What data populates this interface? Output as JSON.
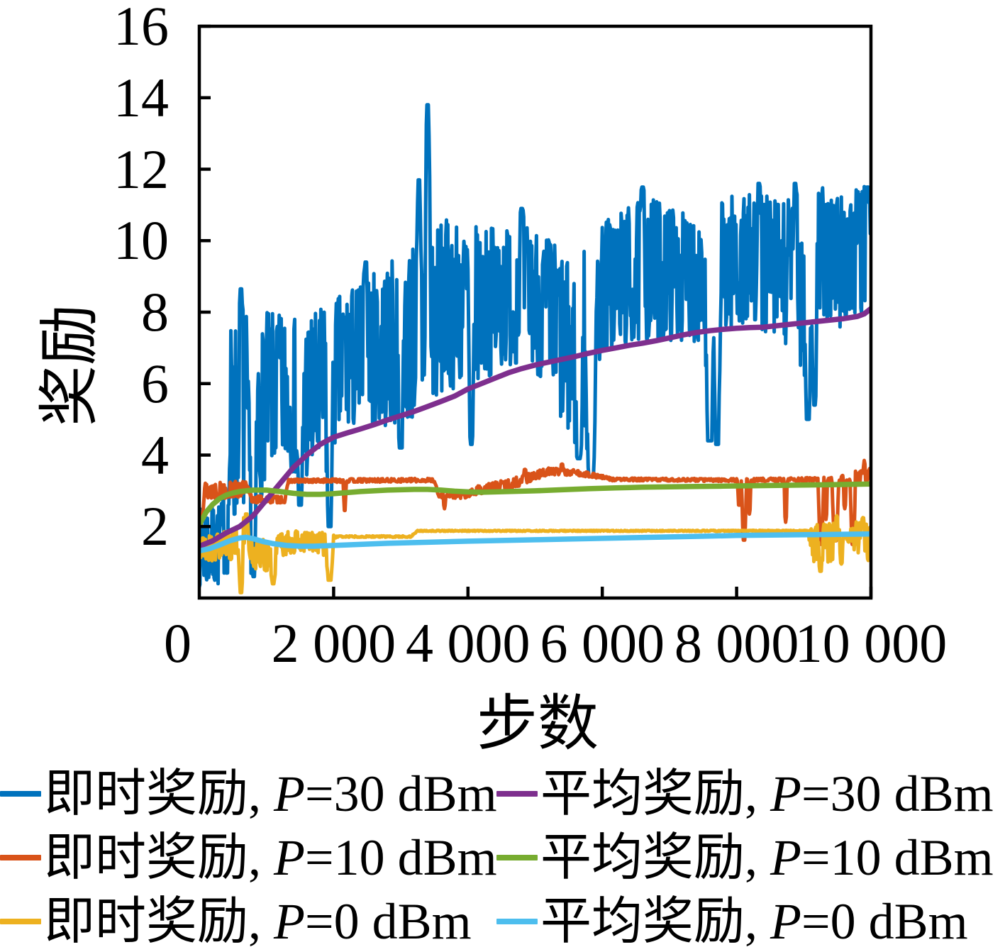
{
  "chart_data": {
    "type": "line",
    "title": "",
    "xlabel": "步数",
    "ylabel": "奖励",
    "xlim": [
      0,
      10000
    ],
    "ylim": [
      0,
      16
    ],
    "grid": false,
    "legend_position": "below-two-columns",
    "origin_tick_label": "0",
    "x_ticks": [
      {
        "value": 2000,
        "label": "2 000"
      },
      {
        "value": 4000,
        "label": "4 000"
      },
      {
        "value": 6000,
        "label": "6 000"
      },
      {
        "value": 8000,
        "label": "8 000"
      },
      {
        "value": 10000,
        "label": "10 000"
      }
    ],
    "y_ticks": [
      {
        "value": 2,
        "label": "2"
      },
      {
        "value": 4,
        "label": "4"
      },
      {
        "value": 6,
        "label": "6"
      },
      {
        "value": 8,
        "label": "8"
      },
      {
        "value": 10,
        "label": "10"
      },
      {
        "value": 12,
        "label": "12"
      },
      {
        "value": 14,
        "label": "14"
      },
      {
        "value": 16,
        "label": "16"
      }
    ],
    "series": [
      {
        "name": "即时奖励, P=30 dBm",
        "legend_cn": "即时奖励, ",
        "legend_math": "P",
        "legend_rest": "=30 dBm",
        "color": "#0072BD",
        "style": "noisy",
        "line_width": 5,
        "trend": [
          [
            0,
            1.4,
            1.1
          ],
          [
            350,
            1.5,
            1.2
          ],
          [
            430,
            4.6,
            3.0
          ],
          [
            700,
            5.2,
            2.8
          ],
          [
            770,
            2.2,
            1.5
          ],
          [
            870,
            4.6,
            2.4
          ],
          [
            1000,
            5.8,
            2.2
          ],
          [
            1300,
            5.8,
            2.1
          ],
          [
            1500,
            5.5,
            2.3
          ],
          [
            1800,
            5.7,
            2.4
          ],
          [
            2100,
            6.5,
            2.0
          ],
          [
            2500,
            6.9,
            2.1
          ],
          [
            2900,
            7.1,
            2.4
          ],
          [
            3300,
            7.6,
            2.6
          ],
          [
            3700,
            8.2,
            2.4
          ],
          [
            4100,
            8.2,
            2.2
          ],
          [
            4500,
            8.4,
            2.0
          ],
          [
            4900,
            8.6,
            1.9
          ],
          [
            5250,
            7.8,
            2.3
          ],
          [
            5550,
            6.6,
            2.6
          ],
          [
            5800,
            7.6,
            2.4
          ],
          [
            6000,
            8.7,
            1.9
          ],
          [
            6400,
            9.0,
            2.0
          ],
          [
            6800,
            9.2,
            2.0
          ],
          [
            7200,
            9.0,
            1.8
          ],
          [
            7500,
            9.0,
            1.9
          ],
          [
            7900,
            9.4,
            1.9
          ],
          [
            8300,
            9.4,
            1.9
          ],
          [
            8700,
            9.1,
            2.1
          ],
          [
            9000,
            8.8,
            2.4
          ],
          [
            9300,
            9.6,
            1.9
          ],
          [
            9600,
            9.4,
            2.0
          ],
          [
            10000,
            9.9,
            1.7
          ]
        ],
        "events": [
          [
            410,
            0.7,
            35
          ],
          [
            620,
            8.65,
            40
          ],
          [
            810,
            0.6,
            45
          ],
          [
            1500,
            2.6,
            60
          ],
          [
            1940,
            2.0,
            60
          ],
          [
            2480,
            9.4,
            40
          ],
          [
            3000,
            4.2,
            55
          ],
          [
            3270,
            11.7,
            35
          ],
          [
            3400,
            13.8,
            45
          ],
          [
            4050,
            4.3,
            50
          ],
          [
            4800,
            10.9,
            45
          ],
          [
            5650,
            3.9,
            70
          ],
          [
            5830,
            3.4,
            100
          ],
          [
            6600,
            11.5,
            45
          ],
          [
            7600,
            4.4,
            80
          ],
          [
            7710,
            4.3,
            55
          ],
          [
            8330,
            11.6,
            40
          ],
          [
            8870,
            11.6,
            40
          ],
          [
            9060,
            5.0,
            60
          ],
          [
            9160,
            5.4,
            45
          ],
          [
            9950,
            11.5,
            40
          ]
        ]
      },
      {
        "name": "平均奖励, P=30 dBm",
        "legend_cn": "平均奖励, ",
        "legend_math": "P",
        "legend_rest": "=30 dBm",
        "color": "#7E2F8E",
        "style": "smooth",
        "line_width": 7.5,
        "points": [
          [
            0,
            1.45
          ],
          [
            200,
            1.6
          ],
          [
            400,
            1.82
          ],
          [
            600,
            2.0
          ],
          [
            800,
            2.3
          ],
          [
            1000,
            2.75
          ],
          [
            1200,
            3.2
          ],
          [
            1400,
            3.65
          ],
          [
            1600,
            4.0
          ],
          [
            1800,
            4.3
          ],
          [
            2000,
            4.5
          ],
          [
            2200,
            4.62
          ],
          [
            2400,
            4.73
          ],
          [
            2600,
            4.85
          ],
          [
            2800,
            4.98
          ],
          [
            3000,
            5.1
          ],
          [
            3200,
            5.22
          ],
          [
            3400,
            5.36
          ],
          [
            3600,
            5.5
          ],
          [
            3800,
            5.65
          ],
          [
            4000,
            5.85
          ],
          [
            4200,
            6.0
          ],
          [
            4400,
            6.15
          ],
          [
            4600,
            6.3
          ],
          [
            4800,
            6.42
          ],
          [
            5000,
            6.52
          ],
          [
            5200,
            6.6
          ],
          [
            5400,
            6.68
          ],
          [
            5600,
            6.76
          ],
          [
            5800,
            6.85
          ],
          [
            6000,
            6.93
          ],
          [
            6200,
            7.0
          ],
          [
            6400,
            7.07
          ],
          [
            6600,
            7.13
          ],
          [
            6800,
            7.2
          ],
          [
            7000,
            7.28
          ],
          [
            7200,
            7.36
          ],
          [
            7400,
            7.43
          ],
          [
            7600,
            7.48
          ],
          [
            7800,
            7.52
          ],
          [
            8000,
            7.55
          ],
          [
            8200,
            7.57
          ],
          [
            8400,
            7.58
          ],
          [
            8600,
            7.62
          ],
          [
            8800,
            7.66
          ],
          [
            9000,
            7.7
          ],
          [
            9200,
            7.74
          ],
          [
            9400,
            7.78
          ],
          [
            9600,
            7.82
          ],
          [
            9800,
            7.88
          ],
          [
            9900,
            7.95
          ],
          [
            10000,
            8.1
          ]
        ]
      },
      {
        "name": "即时奖励, P=10 dBm",
        "legend_cn": "即时奖励, ",
        "legend_math": "P",
        "legend_rest": "=10 dBm",
        "color": "#D95319",
        "style": "noisy",
        "line_width": 5,
        "trend": [
          [
            0,
            2.2,
            0.5
          ],
          [
            80,
            3.0,
            0.25
          ],
          [
            700,
            3.05,
            0.22
          ],
          [
            780,
            2.76,
            0.1
          ],
          [
            1280,
            2.76,
            0.1
          ],
          [
            1330,
            3.28,
            0.05
          ],
          [
            3500,
            3.3,
            0.05
          ],
          [
            3560,
            2.86,
            0.05
          ],
          [
            3950,
            2.86,
            0.08
          ],
          [
            4150,
            3.02,
            0.12
          ],
          [
            4650,
            3.2,
            0.15
          ],
          [
            5200,
            3.55,
            0.1
          ],
          [
            5650,
            3.5,
            0.08
          ],
          [
            5900,
            3.42,
            0.06
          ],
          [
            6150,
            3.32,
            0.04
          ],
          [
            7900,
            3.3,
            0.04
          ],
          [
            9500,
            3.32,
            0.06
          ],
          [
            9750,
            3.4,
            0.15
          ],
          [
            10000,
            3.45,
            0.22
          ]
        ],
        "events": [
          [
            2165,
            2.45,
            22
          ],
          [
            3650,
            2.5,
            18
          ],
          [
            4850,
            3.6,
            25
          ],
          [
            5400,
            3.75,
            25
          ],
          [
            8040,
            2.6,
            28
          ],
          [
            8110,
            1.62,
            38
          ],
          [
            8190,
            2.35,
            22
          ],
          [
            8730,
            2.12,
            22
          ],
          [
            9255,
            1.5,
            42
          ],
          [
            9330,
            2.2,
            22
          ],
          [
            9470,
            1.6,
            52
          ],
          [
            9610,
            2.5,
            22
          ],
          [
            9730,
            1.5,
            40
          ],
          [
            9900,
            3.85,
            18
          ]
        ]
      },
      {
        "name": "平均奖励, P=10 dBm",
        "legend_cn": "平均奖励, ",
        "legend_math": "P",
        "legend_rest": "=10 dBm",
        "color": "#77AC30",
        "style": "smooth",
        "line_width": 7.5,
        "points": [
          [
            0,
            2.05
          ],
          [
            100,
            2.4
          ],
          [
            200,
            2.62
          ],
          [
            300,
            2.78
          ],
          [
            400,
            2.88
          ],
          [
            500,
            2.94
          ],
          [
            600,
            2.98
          ],
          [
            800,
            3.02
          ],
          [
            1000,
            3.02
          ],
          [
            1200,
            2.98
          ],
          [
            1400,
            2.93
          ],
          [
            1600,
            2.9
          ],
          [
            1800,
            2.9
          ],
          [
            2000,
            2.92
          ],
          [
            2200,
            2.95
          ],
          [
            2400,
            2.98
          ],
          [
            2600,
            3.0
          ],
          [
            2800,
            3.02
          ],
          [
            3000,
            3.03
          ],
          [
            3200,
            3.04
          ],
          [
            3400,
            3.04
          ],
          [
            3600,
            3.02
          ],
          [
            3800,
            2.99
          ],
          [
            4000,
            2.97
          ],
          [
            4200,
            2.96
          ],
          [
            4400,
            2.97
          ],
          [
            4600,
            2.98
          ],
          [
            5000,
            3.0
          ],
          [
            5400,
            3.03
          ],
          [
            5800,
            3.06
          ],
          [
            6200,
            3.08
          ],
          [
            6600,
            3.1
          ],
          [
            7000,
            3.11
          ],
          [
            7400,
            3.12
          ],
          [
            7800,
            3.13
          ],
          [
            8200,
            3.14
          ],
          [
            8600,
            3.15
          ],
          [
            9000,
            3.16
          ],
          [
            9400,
            3.17
          ],
          [
            9700,
            3.18
          ],
          [
            10000,
            3.19
          ]
        ]
      },
      {
        "name": "即时奖励, P=0 dBm",
        "legend_cn": "即时奖励, ",
        "legend_math": "P",
        "legend_rest": "=0 dBm",
        "color": "#EDB120",
        "style": "noisy",
        "line_width": 5,
        "trend": [
          [
            0,
            1.35,
            0.35
          ],
          [
            500,
            1.5,
            0.45
          ],
          [
            650,
            1.9,
            0.4
          ],
          [
            800,
            1.25,
            0.45
          ],
          [
            1050,
            1.2,
            0.45
          ],
          [
            1200,
            1.5,
            0.35
          ],
          [
            1550,
            1.6,
            0.3
          ],
          [
            1850,
            1.5,
            0.35
          ],
          [
            2050,
            1.72,
            0.02
          ],
          [
            3150,
            1.72,
            0.02
          ],
          [
            3250,
            1.88,
            0.015
          ],
          [
            9050,
            1.88,
            0.015
          ],
          [
            9150,
            1.5,
            0.55
          ],
          [
            9450,
            1.55,
            0.55
          ],
          [
            9600,
            1.72,
            0.03
          ],
          [
            9780,
            1.7,
            0.45
          ],
          [
            10000,
            1.72,
            0.45
          ]
        ],
        "events": [
          [
            620,
            0.15,
            40
          ],
          [
            700,
            2.35,
            30
          ],
          [
            1100,
            0.4,
            45
          ],
          [
            1940,
            0.5,
            60
          ],
          [
            9250,
            0.75,
            35
          ],
          [
            9490,
            2.3,
            25
          ],
          [
            9560,
            0.95,
            25
          ],
          [
            9880,
            2.25,
            25
          ],
          [
            9960,
            1.05,
            22
          ]
        ]
      },
      {
        "name": "平均奖励, P=0 dBm",
        "legend_cn": "平均奖励, ",
        "legend_math": "P",
        "legend_rest": "=0 dBm",
        "color": "#4DBEEE",
        "style": "smooth",
        "line_width": 7.5,
        "points": [
          [
            0,
            1.32
          ],
          [
            150,
            1.38
          ],
          [
            300,
            1.48
          ],
          [
            450,
            1.6
          ],
          [
            600,
            1.68
          ],
          [
            700,
            1.7
          ],
          [
            800,
            1.66
          ],
          [
            950,
            1.58
          ],
          [
            1100,
            1.52
          ],
          [
            1300,
            1.47
          ],
          [
            1500,
            1.45
          ],
          [
            1700,
            1.45
          ],
          [
            2000,
            1.47
          ],
          [
            2400,
            1.5
          ],
          [
            2800,
            1.53
          ],
          [
            3200,
            1.55
          ],
          [
            3600,
            1.57
          ],
          [
            4000,
            1.59
          ],
          [
            4500,
            1.61
          ],
          [
            5000,
            1.63
          ],
          [
            5500,
            1.65
          ],
          [
            6000,
            1.67
          ],
          [
            6500,
            1.69
          ],
          [
            7000,
            1.71
          ],
          [
            7500,
            1.73
          ],
          [
            8000,
            1.75
          ],
          [
            8500,
            1.76
          ],
          [
            9000,
            1.77
          ],
          [
            9500,
            1.78
          ],
          [
            10000,
            1.79
          ]
        ]
      }
    ]
  }
}
